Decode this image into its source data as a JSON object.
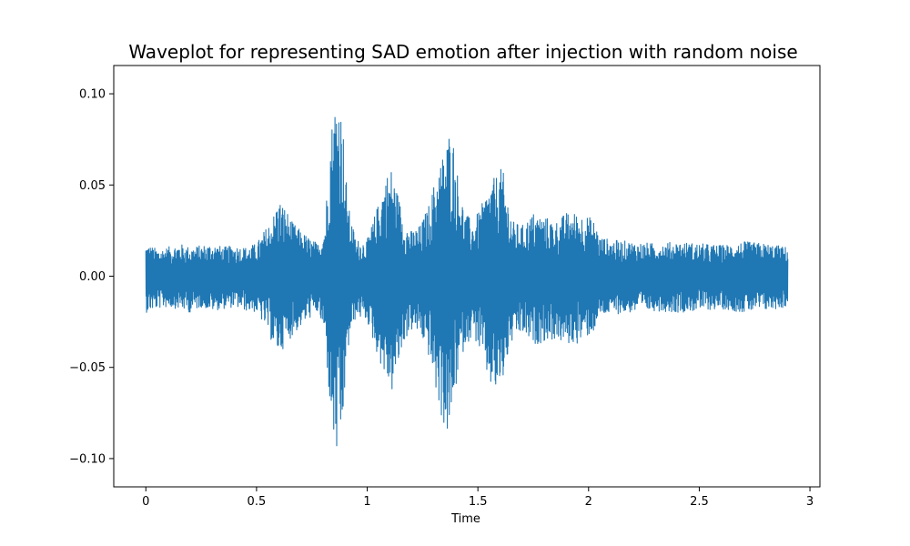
{
  "chart_data": {
    "type": "line",
    "title": "Waveplot for representing SAD emotion after injection with random noise",
    "xlabel": "Time",
    "ylabel": "",
    "xlim": [
      -0.145,
      3.045
    ],
    "ylim": [
      -0.1155,
      0.1155
    ],
    "x_ticks": [
      0,
      0.5,
      1,
      1.5,
      2,
      2.5,
      3
    ],
    "x_tick_labels": [
      "0",
      "0.5",
      "1",
      "1.5",
      "2",
      "2.5",
      "3"
    ],
    "y_ticks": [
      -0.1,
      -0.05,
      0.0,
      0.05,
      0.1
    ],
    "y_tick_labels": [
      "−0.10",
      "−0.05",
      "0.00",
      "0.05",
      "0.10"
    ],
    "grid": false,
    "color": "#1f77b4",
    "series": [
      {
        "kind": "waveform-amplitude-envelope",
        "time": [
          0.0,
          0.05,
          0.1,
          0.15,
          0.2,
          0.25,
          0.3,
          0.35,
          0.4,
          0.45,
          0.5,
          0.55,
          0.58,
          0.6,
          0.63,
          0.66,
          0.7,
          0.75,
          0.78,
          0.81,
          0.83,
          0.85,
          0.87,
          0.89,
          0.9,
          0.92,
          0.95,
          1.0,
          1.05,
          1.08,
          1.11,
          1.14,
          1.17,
          1.2,
          1.24,
          1.28,
          1.32,
          1.35,
          1.37,
          1.39,
          1.41,
          1.44,
          1.48,
          1.52,
          1.55,
          1.58,
          1.61,
          1.64,
          1.66,
          1.7,
          1.75,
          1.8,
          1.85,
          1.9,
          1.95,
          2.0,
          2.03,
          2.05,
          2.1,
          2.2,
          2.3,
          2.4,
          2.5,
          2.6,
          2.7,
          2.8,
          2.9
        ],
        "max": [
          0.018,
          0.015,
          0.016,
          0.018,
          0.016,
          0.017,
          0.018,
          0.016,
          0.017,
          0.016,
          0.018,
          0.028,
          0.035,
          0.043,
          0.038,
          0.03,
          0.025,
          0.02,
          0.018,
          0.03,
          0.075,
          0.095,
          0.104,
          0.085,
          0.06,
          0.035,
          0.02,
          0.02,
          0.04,
          0.055,
          0.06,
          0.045,
          0.03,
          0.025,
          0.028,
          0.04,
          0.06,
          0.07,
          0.08,
          0.075,
          0.055,
          0.035,
          0.03,
          0.04,
          0.05,
          0.055,
          0.06,
          0.04,
          0.03,
          0.028,
          0.035,
          0.033,
          0.03,
          0.035,
          0.035,
          0.033,
          0.03,
          0.022,
          0.02,
          0.019,
          0.018,
          0.019,
          0.018,
          0.017,
          0.019,
          0.018,
          0.016
        ],
        "min": [
          -0.02,
          -0.018,
          -0.017,
          -0.018,
          -0.02,
          -0.017,
          -0.019,
          -0.018,
          -0.017,
          -0.019,
          -0.02,
          -0.03,
          -0.04,
          -0.043,
          -0.038,
          -0.033,
          -0.028,
          -0.022,
          -0.02,
          -0.035,
          -0.07,
          -0.095,
          -0.104,
          -0.085,
          -0.06,
          -0.035,
          -0.022,
          -0.025,
          -0.045,
          -0.055,
          -0.065,
          -0.05,
          -0.035,
          -0.03,
          -0.032,
          -0.045,
          -0.07,
          -0.085,
          -0.09,
          -0.07,
          -0.055,
          -0.038,
          -0.033,
          -0.045,
          -0.06,
          -0.065,
          -0.06,
          -0.042,
          -0.035,
          -0.032,
          -0.038,
          -0.036,
          -0.035,
          -0.038,
          -0.037,
          -0.033,
          -0.03,
          -0.022,
          -0.021,
          -0.02,
          -0.019,
          -0.02,
          -0.019,
          -0.018,
          -0.02,
          -0.019,
          -0.017
        ]
      }
    ]
  }
}
